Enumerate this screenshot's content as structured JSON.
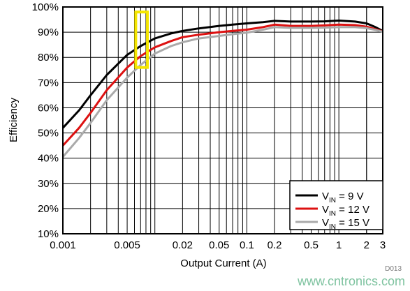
{
  "chart_data": {
    "type": "line",
    "xlabel": "Output Current (A)",
    "ylabel": "Efficiency",
    "xscale": "log",
    "xlim": [
      0.001,
      3
    ],
    "ylim": [
      10,
      100
    ],
    "x_ticks": [
      0.001,
      0.005,
      0.02,
      0.05,
      0.1,
      0.2,
      0.5,
      1,
      2,
      3
    ],
    "x_tick_labels": [
      "0.001",
      "0.005",
      "0.02",
      "0.05",
      "0.1",
      "0.2",
      "0.5",
      "1",
      "2",
      "3"
    ],
    "y_ticks": [
      10,
      20,
      30,
      40,
      50,
      60,
      70,
      80,
      90,
      100
    ],
    "y_tick_labels": [
      "10%",
      "20%",
      "30%",
      "40%",
      "50%",
      "60%",
      "70%",
      "80%",
      "90%",
      "100%"
    ],
    "grid": true,
    "legend_position": "bottom-right",
    "series": [
      {
        "name": "VIN = 9 V",
        "legend_main": "V",
        "legend_sub": "IN",
        "legend_rest": " = 9 V",
        "color": "#000000",
        "points": [
          [
            0.001,
            52
          ],
          [
            0.0015,
            59
          ],
          [
            0.002,
            65
          ],
          [
            0.003,
            73
          ],
          [
            0.005,
            81
          ],
          [
            0.007,
            84.5
          ],
          [
            0.01,
            87.5
          ],
          [
            0.015,
            89.5
          ],
          [
            0.02,
            90.5
          ],
          [
            0.03,
            91.5
          ],
          [
            0.05,
            92.5
          ],
          [
            0.07,
            93
          ],
          [
            0.1,
            93.5
          ],
          [
            0.15,
            94
          ],
          [
            0.2,
            94.5
          ],
          [
            0.3,
            94.2
          ],
          [
            0.5,
            94.2
          ],
          [
            0.7,
            94.3
          ],
          [
            1,
            94.6
          ],
          [
            1.5,
            94.2
          ],
          [
            2,
            93.5
          ],
          [
            2.5,
            92
          ],
          [
            3,
            90.5
          ]
        ]
      },
      {
        "name": "VIN = 12 V",
        "legend_main": "V",
        "legend_sub": "IN",
        "legend_rest": " = 12 V",
        "color": "#dd1111",
        "points": [
          [
            0.001,
            45
          ],
          [
            0.0015,
            52
          ],
          [
            0.002,
            58
          ],
          [
            0.003,
            67
          ],
          [
            0.005,
            76
          ],
          [
            0.007,
            80.5
          ],
          [
            0.01,
            84
          ],
          [
            0.015,
            86.5
          ],
          [
            0.02,
            88
          ],
          [
            0.03,
            89
          ],
          [
            0.05,
            90
          ],
          [
            0.07,
            90.5
          ],
          [
            0.1,
            91
          ],
          [
            0.15,
            92
          ],
          [
            0.2,
            93
          ],
          [
            0.3,
            92.5
          ],
          [
            0.5,
            92.5
          ],
          [
            0.7,
            92.7
          ],
          [
            1,
            93
          ],
          [
            1.5,
            92.8
          ],
          [
            2,
            92.2
          ],
          [
            2.5,
            91.2
          ],
          [
            3,
            90.3
          ]
        ]
      },
      {
        "name": "VIN = 15 V",
        "legend_main": "V",
        "legend_sub": "IN",
        "legend_rest": " = 15 V",
        "color": "#aaaaaa",
        "points": [
          [
            0.001,
            40.5
          ],
          [
            0.0015,
            48
          ],
          [
            0.002,
            54
          ],
          [
            0.003,
            63
          ],
          [
            0.005,
            72
          ],
          [
            0.007,
            77
          ],
          [
            0.01,
            81.5
          ],
          [
            0.015,
            84.5
          ],
          [
            0.02,
            86
          ],
          [
            0.03,
            87.5
          ],
          [
            0.05,
            88.5
          ],
          [
            0.07,
            89.2
          ],
          [
            0.1,
            89.8
          ],
          [
            0.15,
            91
          ],
          [
            0.2,
            92
          ],
          [
            0.3,
            91.7
          ],
          [
            0.5,
            91.7
          ],
          [
            0.7,
            91.8
          ],
          [
            1,
            92
          ],
          [
            1.5,
            92
          ],
          [
            2,
            91.6
          ],
          [
            2.5,
            90.9
          ],
          [
            3,
            90.2
          ]
        ]
      }
    ],
    "highlight_box": {
      "color": "#f5e600",
      "x_range": [
        0.0062,
        0.0083
      ],
      "y_range": [
        76,
        98
      ]
    }
  },
  "figure_code": "D013",
  "watermark": "www.cntronics.com"
}
